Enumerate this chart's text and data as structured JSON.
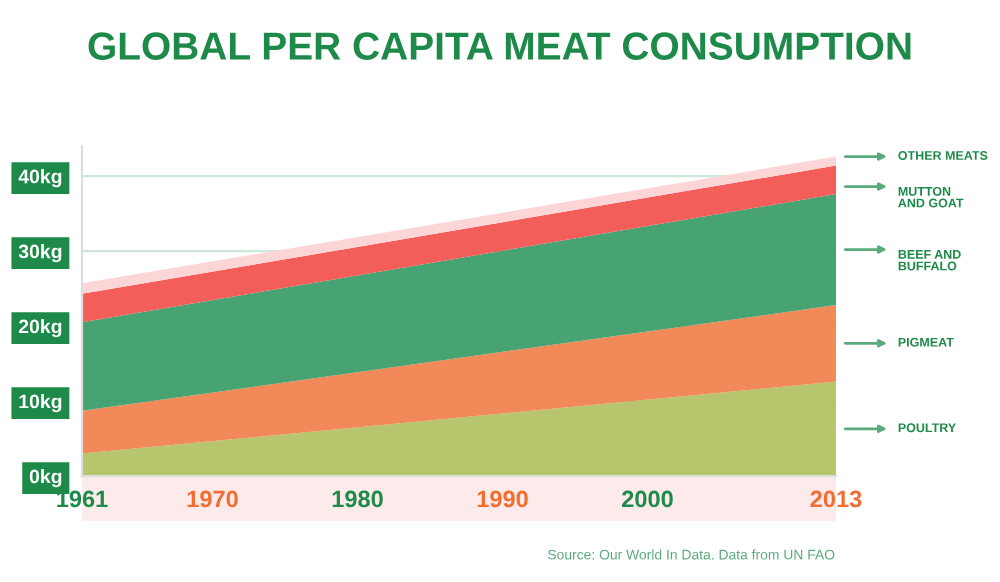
{
  "chart_data": {
    "type": "area",
    "stacked": true,
    "title": "GLOBAL PER CAPITA MEAT CONSUMPTION",
    "x": [
      1961,
      2013
    ],
    "series": [
      {
        "name": "POULTRY",
        "color": "#b3c265",
        "values": [
          3.0,
          12.6
        ]
      },
      {
        "name": "PIGMEAT",
        "color": "#f0844f",
        "values": [
          5.7,
          10.2
        ]
      },
      {
        "name": "BEEF AND\nBUFFALO",
        "color": "#3d9e6a",
        "values": [
          11.8,
          14.8
        ]
      },
      {
        "name": "MUTTON\nAND GOAT",
        "color": "#f25552",
        "values": [
          3.8,
          3.8
        ]
      },
      {
        "name": "OTHER MEATS",
        "color": "#fcd4d4",
        "values": [
          1.4,
          1.2
        ]
      }
    ],
    "xlim": [
      1961,
      2013
    ],
    "xticks": [
      1961,
      1970,
      1980,
      1990,
      2000,
      2013
    ],
    "ylim": [
      0,
      44
    ],
    "yticks": [
      {
        "value": 0,
        "label": "0kg"
      },
      {
        "value": 10,
        "label": "10kg"
      },
      {
        "value": 20,
        "label": "20kg"
      },
      {
        "value": 30,
        "label": "30kg"
      },
      {
        "value": 40,
        "label": "40kg"
      }
    ],
    "grid": "y",
    "legend": false,
    "annotations": [
      "Source: Our World In Data. Data from UN FAO"
    ]
  }
}
